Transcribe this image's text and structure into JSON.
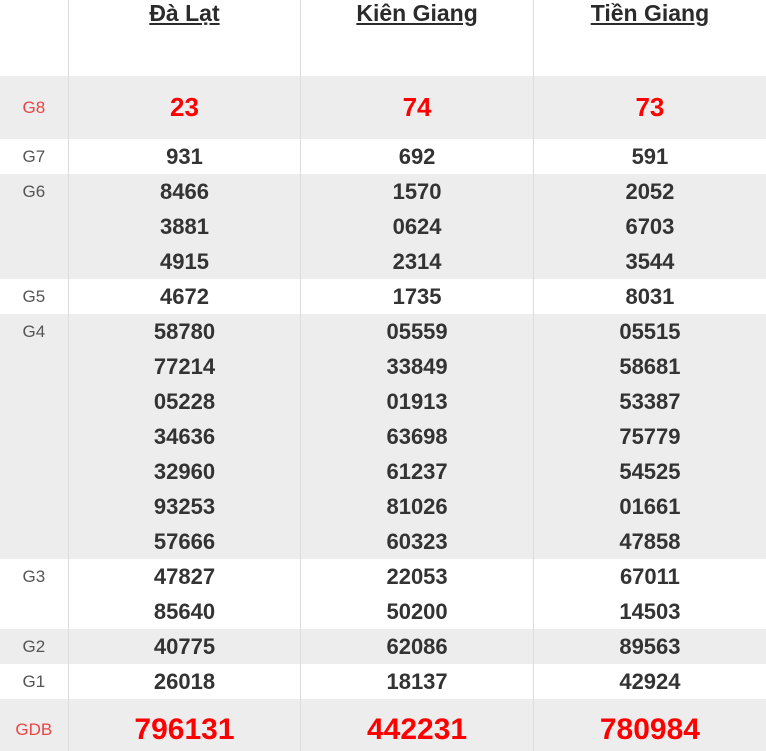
{
  "table": {
    "columns": [
      "Đà Lạt",
      "Kiên Giang",
      "Tiền Giang"
    ],
    "rows": [
      {
        "label": "G8",
        "values": [
          [
            "23"
          ],
          [
            "74"
          ],
          [
            "73"
          ]
        ]
      },
      {
        "label": "G7",
        "values": [
          [
            "931"
          ],
          [
            "692"
          ],
          [
            "591"
          ]
        ]
      },
      {
        "label": "G6",
        "values": [
          [
            "8466",
            "3881",
            "4915"
          ],
          [
            "1570",
            "0624",
            "2314"
          ],
          [
            "2052",
            "6703",
            "3544"
          ]
        ]
      },
      {
        "label": "G5",
        "values": [
          [
            "4672"
          ],
          [
            "1735"
          ],
          [
            "8031"
          ]
        ]
      },
      {
        "label": "G4",
        "values": [
          [
            "58780",
            "77214",
            "05228",
            "34636",
            "32960",
            "93253",
            "57666"
          ],
          [
            "05559",
            "33849",
            "01913",
            "63698",
            "61237",
            "81026",
            "60323"
          ],
          [
            "05515",
            "58681",
            "53387",
            "75779",
            "54525",
            "01661",
            "47858"
          ]
        ]
      },
      {
        "label": "G3",
        "values": [
          [
            "47827",
            "85640"
          ],
          [
            "22053",
            "50200"
          ],
          [
            "67011",
            "14503"
          ]
        ]
      },
      {
        "label": "G2",
        "values": [
          [
            "40775"
          ],
          [
            "62086"
          ],
          [
            "89563"
          ]
        ]
      },
      {
        "label": "G1",
        "values": [
          [
            "26018"
          ],
          [
            "18137"
          ],
          [
            "42924"
          ]
        ]
      },
      {
        "label": "GDB",
        "values": [
          [
            "796131"
          ],
          [
            "442231"
          ],
          [
            "780984"
          ]
        ]
      }
    ]
  },
  "colors": {
    "highlight_value_red": "#ff0000",
    "highlight_label_red": "#e84545",
    "number_text": "#333333",
    "row_label_text": "#555555",
    "header_text": "#2b2b2b",
    "shaded_row_background": "#ededed",
    "column_border": "#dcdcdc"
  }
}
